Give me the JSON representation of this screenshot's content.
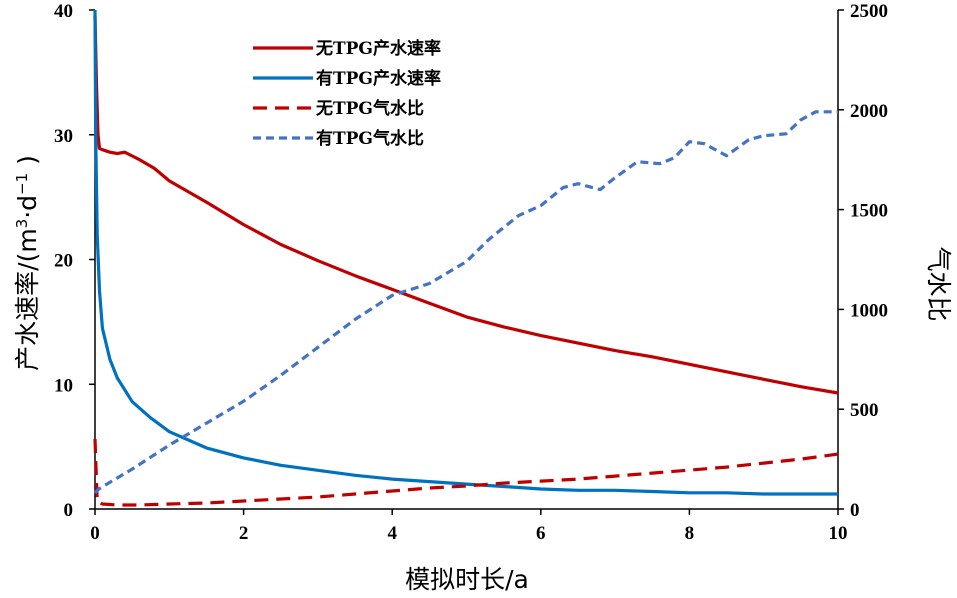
{
  "chart_data": {
    "type": "line",
    "x_label": "模拟时长/a",
    "y_left_label_prefix": "产水速率/(m",
    "y_left_label_sup1": "3",
    "y_left_label_mid": "·d",
    "y_left_label_sup2": "−1",
    "y_left_label_suffix": " )",
    "y_right_label": "气水比",
    "x_range": [
      0,
      10
    ],
    "x_ticks": [
      "0",
      "2",
      "4",
      "6",
      "8",
      "10"
    ],
    "y_left_range": [
      0,
      40
    ],
    "y_left_ticks": [
      "0",
      "10",
      "20",
      "30",
      "40"
    ],
    "y_right_range": [
      0,
      2500
    ],
    "y_right_ticks": [
      "0",
      "500",
      "1000",
      "1500",
      "2000",
      "2500"
    ],
    "grid": false,
    "legend_position": "top-left",
    "series": [
      {
        "name": "无TPG产水速率",
        "axis": "left",
        "color": "#C00000",
        "style": "solid",
        "x": [
          0,
          0.02,
          0.04,
          0.06,
          0.1,
          0.2,
          0.3,
          0.4,
          0.6,
          0.8,
          1.0,
          1.5,
          2.0,
          2.5,
          3.0,
          3.5,
          4.0,
          4.5,
          5.0,
          5.5,
          6.0,
          6.5,
          7.0,
          7.5,
          8.0,
          8.5,
          9.0,
          9.5,
          10.0
        ],
        "y": [
          39.5,
          34.0,
          30.0,
          28.9,
          28.8,
          28.6,
          28.5,
          28.6,
          28.0,
          27.3,
          26.3,
          24.6,
          22.8,
          21.2,
          19.9,
          18.7,
          17.6,
          16.5,
          15.4,
          14.6,
          13.9,
          13.3,
          12.7,
          12.2,
          11.6,
          11.0,
          10.4,
          9.8,
          9.3
        ]
      },
      {
        "name": "有TPG产水速率",
        "axis": "left",
        "color": "#0070C0",
        "style": "solid",
        "x": [
          0,
          0.01,
          0.03,
          0.06,
          0.1,
          0.2,
          0.3,
          0.5,
          0.75,
          1.0,
          1.5,
          2.0,
          2.5,
          3.0,
          3.5,
          4.0,
          4.5,
          5.0,
          5.5,
          6.0,
          6.5,
          7.0,
          7.5,
          8.0,
          8.5,
          9.0,
          9.5,
          10.0
        ],
        "y": [
          40,
          30.0,
          22.0,
          17.5,
          14.5,
          12.0,
          10.5,
          8.6,
          7.3,
          6.2,
          4.9,
          4.1,
          3.5,
          3.1,
          2.7,
          2.4,
          2.2,
          2.0,
          1.8,
          1.6,
          1.5,
          1.5,
          1.4,
          1.3,
          1.3,
          1.2,
          1.2,
          1.2
        ]
      },
      {
        "name": "无TPG气水比",
        "axis": "right",
        "color": "#C00000",
        "style": "dashed",
        "x": [
          0,
          0.03,
          0.1,
          0.3,
          0.6,
          1.0,
          1.5,
          2.0,
          2.5,
          3.0,
          3.5,
          4.0,
          4.5,
          5.0,
          5.5,
          6.0,
          6.5,
          7.0,
          7.5,
          8.0,
          8.5,
          9.0,
          9.5,
          10.0
        ],
        "y": [
          350,
          40,
          25,
          20,
          20,
          25,
          30,
          40,
          50,
          60,
          75,
          90,
          105,
          115,
          130,
          140,
          150,
          165,
          180,
          195,
          210,
          230,
          250,
          275
        ]
      },
      {
        "name": "有TPG气水比",
        "axis": "right",
        "color": "#4472C4",
        "style": "dashed",
        "x": [
          0,
          0.05,
          0.5,
          1.0,
          1.5,
          2.0,
          2.5,
          3.0,
          3.5,
          4.0,
          4.5,
          5.0,
          5.3,
          5.7,
          6.0,
          6.3,
          6.5,
          6.8,
          7.0,
          7.3,
          7.6,
          7.8,
          8.0,
          8.2,
          8.5,
          8.8,
          9.0,
          9.3,
          9.5,
          9.7,
          10.0
        ],
        "y": [
          80,
          100,
          200,
          320,
          430,
          540,
          670,
          810,
          950,
          1070,
          1130,
          1240,
          1350,
          1470,
          1520,
          1610,
          1630,
          1600,
          1660,
          1740,
          1730,
          1760,
          1840,
          1830,
          1770,
          1850,
          1870,
          1880,
          1950,
          1990,
          1990
        ]
      }
    ]
  }
}
